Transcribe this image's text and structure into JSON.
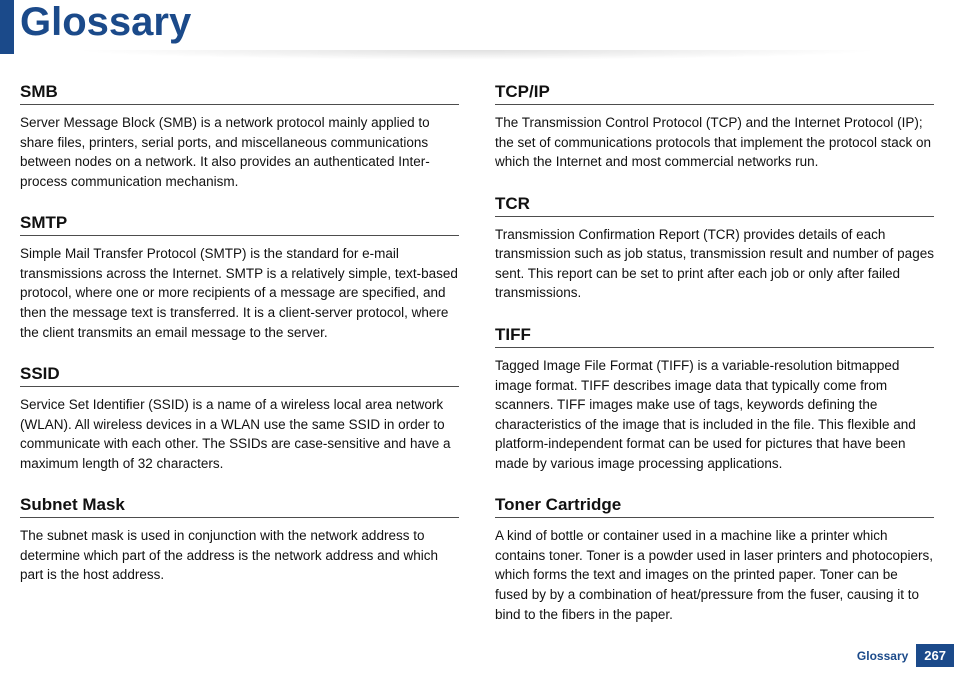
{
  "page": {
    "title": "Glossary",
    "footer_label": "Glossary",
    "page_number": "267"
  },
  "colors": {
    "accent": "#1b4a8a",
    "text": "#111111",
    "rule": "#4d4d4d",
    "background": "#ffffff"
  },
  "typography": {
    "title_fontsize_pt": 30,
    "heading_fontsize_pt": 13,
    "body_fontsize_pt": 10,
    "font_family": "Myriad Pro / Segoe UI / Arial"
  },
  "left_column": [
    {
      "term": "SMB",
      "definition": "Server Message Block (SMB) is a network protocol mainly applied to share files, printers, serial ports, and miscellaneous communications between nodes on a network. It also provides an authenticated Inter-process communication mechanism."
    },
    {
      "term": "SMTP",
      "definition": "Simple Mail Transfer Protocol (SMTP) is the standard for e-mail transmissions across the Internet. SMTP is a relatively simple, text-based protocol, where one or more recipients of a message are specified, and then the message text is transferred. It is a client-server protocol, where the client transmits an email message to the server."
    },
    {
      "term": "SSID",
      "definition": "Service Set Identifier (SSID) is a name of a wireless local area network (WLAN). All wireless devices in a WLAN use the same SSID in order to communicate with each other. The SSIDs are case-sensitive and have a maximum length of 32 characters."
    },
    {
      "term": "Subnet Mask",
      "definition": "The subnet mask is used in conjunction with the network address to determine which part of the address is the network address and which part is the host address."
    }
  ],
  "right_column": [
    {
      "term": "TCP/IP",
      "definition": "The Transmission Control Protocol (TCP) and the Internet Protocol (IP); the set of communications protocols that implement the protocol stack on which the Internet and most commercial networks run."
    },
    {
      "term": "TCR",
      "definition": "Transmission Confirmation Report (TCR) provides details of each transmission such as job status, transmission result and number of pages sent. This report can be set to print after each job or only after failed transmissions."
    },
    {
      "term": "TIFF",
      "definition": "Tagged Image File Format (TIFF) is a variable-resolution bitmapped image format. TIFF describes image data that typically come from scanners. TIFF images make use of tags, keywords defining the characteristics of the image that is included in the file. This flexible and platform-independent format can be used for pictures that have been made by various image processing applications."
    },
    {
      "term": "Toner Cartridge",
      "definition": "A kind of bottle or container used in a machine like a printer which contains toner. Toner is a powder used in laser printers and photocopiers, which forms the text and images on the printed paper. Toner can be fused by by a combination of heat/pressure from the fuser, causing it to bind to the fibers in the paper."
    }
  ]
}
